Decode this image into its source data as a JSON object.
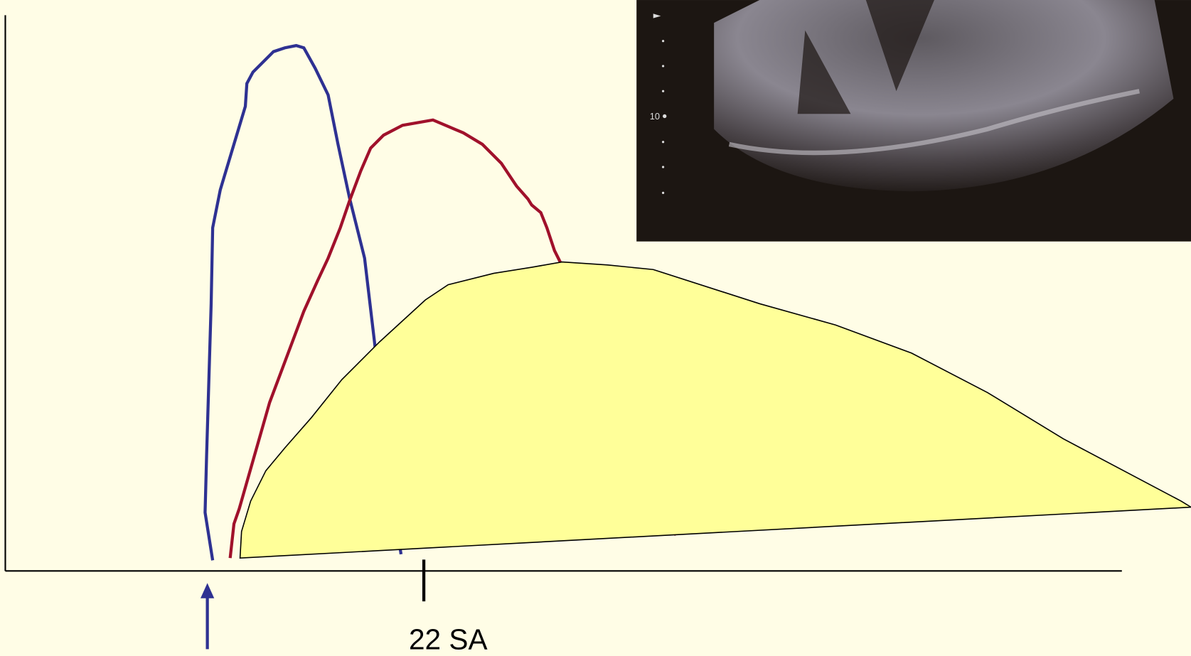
{
  "axis": {
    "marker_label": "22 SA"
  },
  "ultrasound": {
    "depth_label": "10"
  }
}
